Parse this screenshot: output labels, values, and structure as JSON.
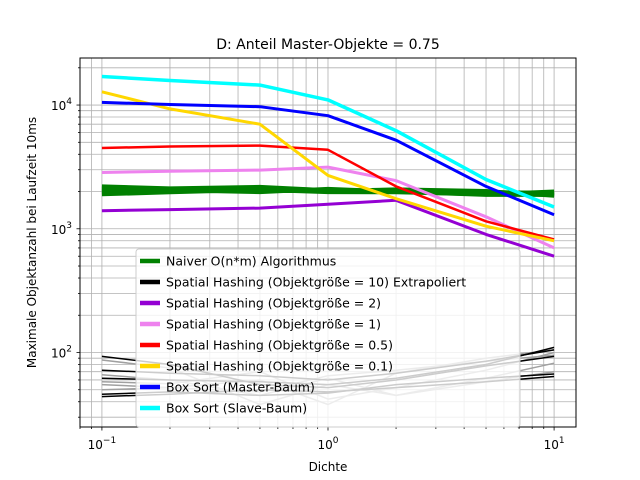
{
  "chart_data": {
    "type": "line",
    "title": "D: Anteil Master-Objekte = 0.75",
    "xlabel": "Dichte",
    "ylabel": "Maximale Objektanzahl bei Laufzeit 10ms",
    "xscale": "log",
    "yscale": "log",
    "xlim": [
      0.08,
      12.5
    ],
    "ylim": [
      25,
      24000
    ],
    "x_ticks": [
      {
        "value": 0.1,
        "base": "10",
        "exp": "−1"
      },
      {
        "value": 1,
        "base": "10",
        "exp": "0"
      },
      {
        "value": 10,
        "base": "10",
        "exp": "1"
      }
    ],
    "y_ticks": [
      {
        "value": 100,
        "base": "10",
        "exp": "2"
      },
      {
        "value": 1000,
        "base": "10",
        "exp": "3"
      },
      {
        "value": 10000,
        "base": "10",
        "exp": "4"
      }
    ],
    "grid": true,
    "legend_position": "lower-center",
    "x": [
      0.1,
      0.2,
      0.5,
      1,
      2,
      5,
      10
    ],
    "series": [
      {
        "name": "Naiver O(n*m) Algorithmus",
        "color": "#008000",
        "width": 4,
        "in_legend": true,
        "lines": [
          [
            2200,
            2120,
            2180,
            2050,
            2030,
            1980,
            1950
          ],
          [
            2000,
            2050,
            1980,
            2100,
            2000,
            1950,
            1900
          ],
          [
            1900,
            1970,
            2060,
            1980,
            1970,
            1900,
            2000
          ],
          [
            2120,
            2080,
            2020,
            2020,
            2080,
            2020,
            1850
          ],
          [
            2050,
            2010,
            2120,
            2060,
            1990,
            1880,
            1880
          ]
        ]
      },
      {
        "name": "Spatial Hashing (Objektgröße = 10) Extrapoliert",
        "color": "#000000",
        "width": 4,
        "in_legend": true,
        "lines": []
      },
      {
        "name": "Spatial Hashing (Objektgröße = 2)",
        "color": "#9400d3",
        "width": 3,
        "in_legend": true,
        "lines": [
          [
            1400,
            1430,
            1470,
            1580,
            1700,
            900,
            600
          ]
        ]
      },
      {
        "name": "Spatial Hashing (Objektgröße = 1)",
        "color": "#ee82ee",
        "width": 3,
        "in_legend": true,
        "lines": [
          [
            2850,
            2920,
            2980,
            3150,
            2450,
            1250,
            700
          ]
        ]
      },
      {
        "name": "Spatial Hashing (Objektgröße = 0.5)",
        "color": "#ff0000",
        "width": 2.5,
        "in_legend": true,
        "lines": [
          [
            4500,
            4620,
            4700,
            4350,
            2200,
            1150,
            820
          ]
        ]
      },
      {
        "name": "Spatial Hashing (Objektgröße = 0.1)",
        "color": "#ffd700",
        "width": 3,
        "in_legend": true,
        "lines": [
          [
            12800,
            9300,
            7000,
            2700,
            1750,
            1050,
            800
          ]
        ]
      },
      {
        "name": "Box Sort (Master-Baum)",
        "color": "#0000ff",
        "width": 3,
        "in_legend": true,
        "lines": [
          [
            10500,
            10100,
            9700,
            8200,
            5200,
            2200,
            1300
          ]
        ]
      },
      {
        "name": "Box Sort (Slave-Baum)",
        "color": "#00ffff",
        "width": 3.5,
        "in_legend": true,
        "lines": [
          [
            17000,
            15800,
            14500,
            11000,
            6200,
            2500,
            1500
          ]
        ]
      },
      {
        "name": "",
        "color": "#000000",
        "width": 1.5,
        "in_legend": false,
        "lines": [
          [
            93,
            80,
            55,
            52,
            60,
            78,
            93
          ],
          [
            72,
            68,
            65,
            60,
            68,
            85,
            105
          ],
          [
            62,
            60,
            58,
            55,
            62,
            80,
            110
          ],
          [
            44,
            46,
            50,
            48,
            52,
            58,
            64
          ],
          [
            46,
            48,
            45,
            47,
            55,
            62,
            67
          ]
        ]
      },
      {
        "name": "",
        "color": "#a0a0a0",
        "width": 1.5,
        "in_legend": false,
        "lines": [
          [
            87,
            75,
            38,
            55,
            45,
            58,
            70
          ],
          [
            58,
            56,
            70,
            42,
            52,
            72,
            100
          ],
          [
            50,
            52,
            60,
            38,
            68,
            90,
            105
          ],
          [
            66,
            60,
            45,
            62,
            45,
            62,
            82
          ],
          [
            55,
            52,
            48,
            65,
            72,
            85,
            95
          ]
        ]
      }
    ]
  }
}
